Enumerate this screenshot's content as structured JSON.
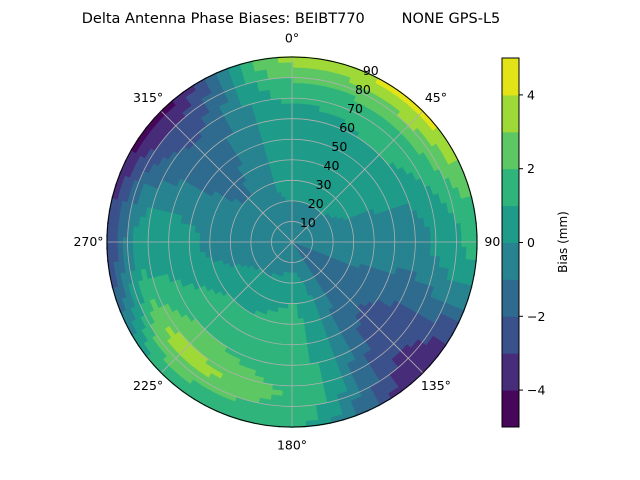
{
  "chart_data": {
    "type": "contour",
    "projection": "polar",
    "title": "Delta Antenna Phase Biases: BEIBT770        NONE GPS-L5",
    "angular_ticks": [
      "0°",
      "45°",
      "90°",
      "135°",
      "180°",
      "225°",
      "270°",
      "315°"
    ],
    "angular_direction": "clockwise",
    "angular_zero": "north",
    "radial_ticks": [
      "10",
      "20",
      "30",
      "40",
      "50",
      "60",
      "70",
      "80",
      "90"
    ],
    "radial_range": [
      0,
      90
    ],
    "grid": true,
    "colormap": "viridis",
    "colorbar": {
      "label": "Bias (mm)",
      "range": [
        -5,
        5
      ],
      "levels": [
        -5,
        -4,
        -3,
        -2,
        -1,
        0,
        1,
        2,
        3,
        4,
        5
      ],
      "ticks": [
        "−4",
        "−2",
        "0",
        "2",
        "4"
      ],
      "tick_values": [
        -4,
        -2,
        0,
        2,
        4
      ],
      "colors": [
        "#46075a",
        "#472c7a",
        "#3b518b",
        "#2e6b8e",
        "#26838f",
        "#1f9c89",
        "#2fb47c",
        "#5dc863",
        "#9fd938",
        "#e2e418"
      ]
    },
    "approx_grid": {
      "azimuth_deg": [
        0,
        45,
        90,
        135,
        180,
        225,
        270,
        315
      ],
      "radius": [
        0,
        30,
        60,
        75,
        90
      ],
      "values": [
        [
          -1,
          0.5,
          0.5,
          1.5,
          3.5
        ],
        [
          -1,
          0.5,
          1.0,
          2.0,
          4.5
        ],
        [
          -1,
          -0.5,
          -0.5,
          0.5,
          1.5
        ],
        [
          -1,
          -1.5,
          -2.5,
          -3.0,
          -4.0
        ],
        [
          -1,
          1.0,
          1.5,
          2.0,
          1.0
        ],
        [
          -1,
          0.5,
          2.0,
          3.5,
          1.0
        ],
        [
          -1,
          -0.5,
          0.5,
          0.5,
          -3.0
        ],
        [
          -1,
          -1.0,
          -1.5,
          -2.5,
          -4.5
        ]
      ]
    }
  }
}
